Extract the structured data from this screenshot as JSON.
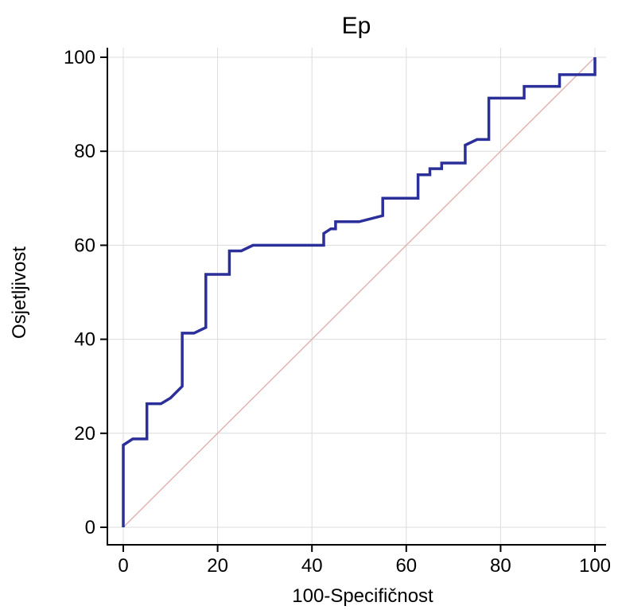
{
  "chart_data": {
    "type": "line",
    "title": "Ep",
    "xlabel": "100-Specifičnost",
    "ylabel": "Osjetljivost",
    "xlim": [
      0,
      100
    ],
    "ylim": [
      0,
      100
    ],
    "xticks": [
      "0",
      "20",
      "40",
      "60",
      "80",
      "100"
    ],
    "yticks": [
      "0",
      "20",
      "40",
      "60",
      "80",
      "100"
    ],
    "grid": true,
    "series": [
      {
        "color": "#2b2f9a",
        "x": [
          0,
          0,
          2,
          5,
          5,
          8,
          10,
          12.5,
          12.5,
          15,
          17.5,
          17.5,
          22.5,
          22.5,
          25,
          27.5,
          42.5,
          42.5,
          44,
          45,
          45,
          50,
          55,
          55,
          62.5,
          62.5,
          65,
          65,
          67.5,
          67.5,
          72.5,
          72.5,
          75,
          77.5,
          77.5,
          85,
          85,
          92.5,
          92.5,
          100,
          100
        ],
        "y": [
          0,
          17.5,
          18.8,
          18.8,
          26.3,
          26.3,
          27.5,
          30,
          41.3,
          41.3,
          42.5,
          53.8,
          53.8,
          58.8,
          58.8,
          60,
          60,
          62.5,
          63.5,
          63.5,
          65,
          65,
          66.3,
          70,
          70,
          75,
          75,
          76.3,
          76.3,
          77.5,
          77.5,
          81.3,
          82.5,
          82.5,
          91.3,
          91.3,
          93.8,
          93.8,
          96.3,
          96.3,
          100
        ]
      },
      {
        "color": "#e3b3b3",
        "x": [
          0,
          100
        ],
        "y": [
          0,
          100
        ]
      }
    ]
  }
}
